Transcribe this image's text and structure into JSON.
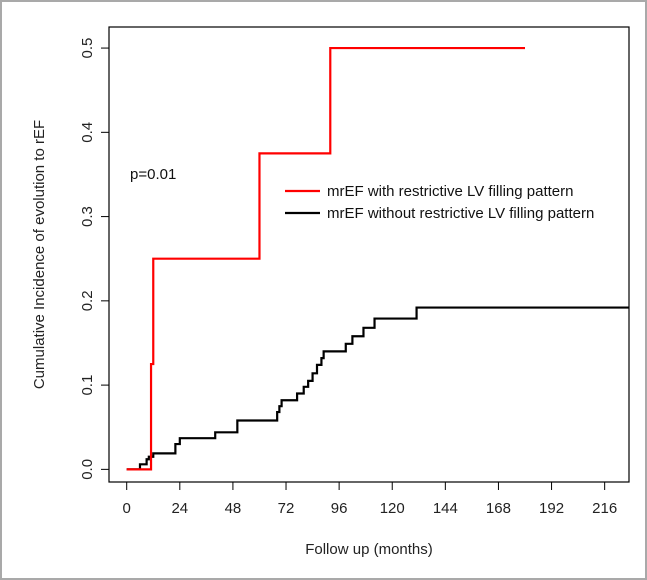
{
  "chart_data": {
    "type": "line",
    "step": true,
    "xlabel": "Follow up (months)",
    "ylabel": "Cumulative Incidence of evolution to rEF",
    "xlim": [
      -8,
      227
    ],
    "ylim": [
      -0.015,
      0.525
    ],
    "xticks": [
      0,
      24,
      48,
      72,
      96,
      120,
      144,
      168,
      192,
      216
    ],
    "yticks": [
      0.0,
      0.1,
      0.2,
      0.3,
      0.4,
      0.5
    ],
    "ytick_labels": [
      "0.0",
      "0.1",
      "0.2",
      "0.3",
      "0.4",
      "0.5"
    ],
    "annotation": "p=0.01",
    "legend_position": "center-right",
    "series": [
      {
        "name": "mrEF with restrictive LV filling pattern",
        "color": "#ff0000",
        "x": [
          0,
          11,
          11,
          12,
          12,
          60,
          60,
          92,
          92,
          180
        ],
        "y": [
          0,
          0,
          0.125,
          0.125,
          0.25,
          0.25,
          0.375,
          0.375,
          0.5,
          0.5
        ]
      },
      {
        "name": "mrEF without restrictive LV filling pattern",
        "color": "#000000",
        "x": [
          0,
          6,
          6,
          9,
          9,
          10,
          10,
          12,
          12,
          22,
          22,
          24,
          24,
          40,
          40,
          50,
          50,
          68,
          68,
          69,
          69,
          70,
          70,
          77,
          77,
          80,
          80,
          82,
          82,
          84,
          84,
          86,
          86,
          88,
          88,
          89,
          89,
          99,
          99,
          102,
          102,
          107,
          107,
          110,
          110,
          112,
          112,
          131,
          131,
          156,
          156,
          227
        ],
        "y": [
          0,
          0,
          0.006,
          0.006,
          0.012,
          0.012,
          0.015,
          0.015,
          0.019,
          0.019,
          0.03,
          0.03,
          0.037,
          0.037,
          0.044,
          0.044,
          0.058,
          0.058,
          0.068,
          0.068,
          0.075,
          0.075,
          0.082,
          0.082,
          0.09,
          0.09,
          0.098,
          0.098,
          0.105,
          0.105,
          0.114,
          0.114,
          0.124,
          0.124,
          0.132,
          0.132,
          0.14,
          0.14,
          0.149,
          0.149,
          0.158,
          0.158,
          0.168,
          0.168,
          0.168,
          0.168,
          0.179,
          0.179,
          0.192,
          0.192,
          0.192,
          0.192
        ]
      }
    ]
  }
}
